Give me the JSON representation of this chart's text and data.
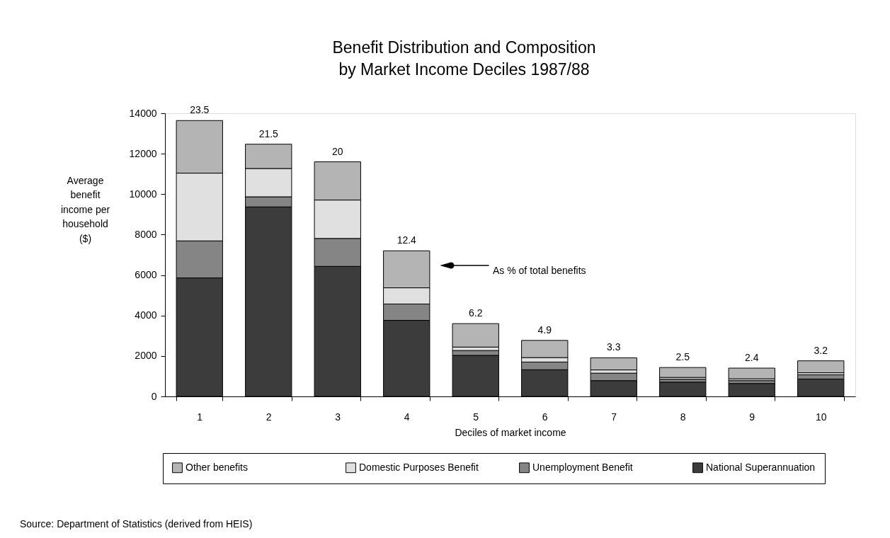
{
  "chart_data": {
    "type": "bar",
    "stacked": true,
    "title": "Benefit Distribution and Composition\nby Market Income Deciles 1987/88",
    "xlabel": "Deciles of market income",
    "ylabel": "Average\nbenefit\nincome per\nhousehold\n($)",
    "categories": [
      "1",
      "2",
      "3",
      "4",
      "5",
      "6",
      "7",
      "8",
      "9",
      "10"
    ],
    "series": [
      {
        "name": "National Superannuation",
        "color": "#3c3c3c",
        "values": [
          5860,
          9370,
          6430,
          3760,
          2030,
          1320,
          780,
          710,
          640,
          860
        ]
      },
      {
        "name": "Unemployment Benefit",
        "color": "#858585",
        "values": [
          1830,
          500,
          1380,
          810,
          240,
          380,
          370,
          140,
          140,
          210
        ]
      },
      {
        "name": "Domestic Purposes Benefit",
        "color": "#e0e0e0",
        "values": [
          3350,
          1400,
          1900,
          800,
          170,
          220,
          160,
          90,
          90,
          100
        ]
      },
      {
        "name": "Other benefits",
        "color": "#b4b4b4",
        "values": [
          2600,
          1200,
          1890,
          1830,
          1160,
          850,
          600,
          490,
          530,
          590
        ]
      }
    ],
    "ylim": [
      0,
      14000
    ],
    "yticks": [
      0,
      2000,
      4000,
      6000,
      8000,
      10000,
      12000,
      14000
    ],
    "legend": "bottom",
    "annotations": [
      {
        "text": "23.5",
        "x": "1",
        "y": 13640
      },
      {
        "text": "21.5",
        "x": "2",
        "y": 12470
      },
      {
        "text": "20",
        "x": "3",
        "y": 11600
      },
      {
        "text": "12.4",
        "x": "4",
        "y": 7200
      },
      {
        "text": "6.2",
        "x": "5",
        "y": 3600
      },
      {
        "text": "4.9",
        "x": "6",
        "y": 2770
      },
      {
        "text": "3.3",
        "x": "7",
        "y": 1910
      },
      {
        "text": "2.5",
        "x": "8",
        "y": 1430
      },
      {
        "text": "2.4",
        "x": "9",
        "y": 1400
      },
      {
        "text": "3.2",
        "x": "10",
        "y": 1760
      },
      "As % of total benefits",
      "Source: Department of Statistics (derived from HEIS)"
    ]
  }
}
